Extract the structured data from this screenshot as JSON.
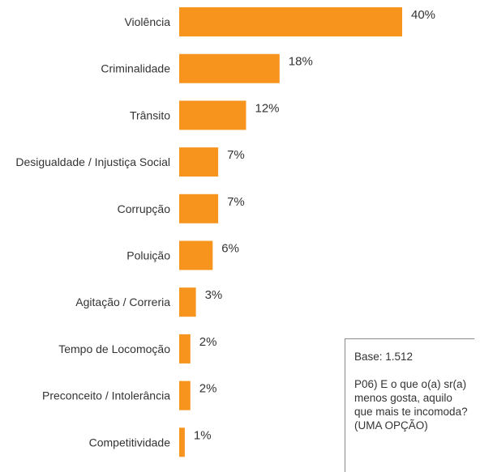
{
  "chart_data": {
    "type": "bar",
    "orientation": "horizontal",
    "categories": [
      "Violência",
      "Criminalidade",
      "Trânsito",
      "Desigualdade /  Injustiça Social",
      "Corrupção",
      "Poluição",
      "Agitação / Correria",
      "Tempo de Locomoção",
      "Preconceito / Intolerância",
      "Competitividade"
    ],
    "values": [
      40,
      18,
      12,
      7,
      7,
      6,
      3,
      2,
      2,
      1
    ],
    "value_labels": [
      "40%",
      "18%",
      "12%",
      "7%",
      "7%",
      "6%",
      "3%",
      "2%",
      "2%",
      "1%"
    ],
    "unit": "%",
    "bar_color": "#f7941d",
    "grid": false,
    "legend": "none"
  },
  "note": {
    "base": "Base: 1.512",
    "question": "P06) E o que o(a) sr(a)\nmenos gosta, aquilo\nque mais te incomoda?\n(UMA OPÇÃO)"
  }
}
